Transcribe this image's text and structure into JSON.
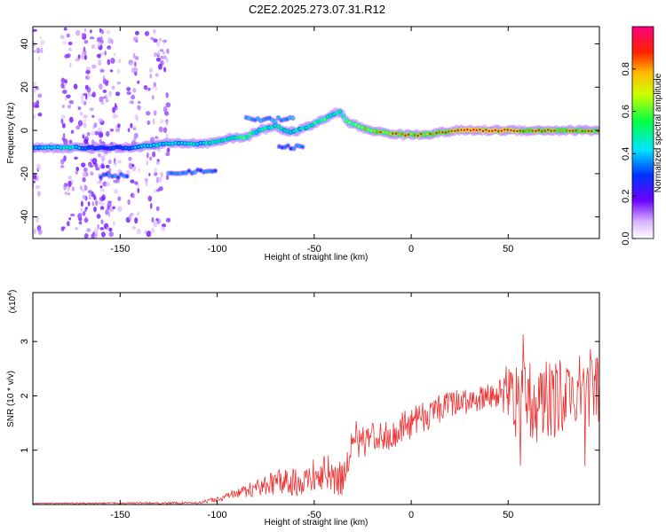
{
  "title": "C2E2.2025.273.07.31.R12",
  "chart_data": [
    {
      "type": "heatmap",
      "name": "spectrogram",
      "xlabel": "Height of straight line (km)",
      "ylabel": "Frequency (Hz)",
      "xlim": [
        -195,
        97
      ],
      "ylim": [
        -50,
        48
      ],
      "xticks": [
        -150,
        -100,
        -50,
        0,
        50
      ],
      "yticks": [
        -40,
        -20,
        0,
        20,
        40
      ],
      "colorbar": {
        "label": "Normalized spectral amplitude",
        "range": [
          0.0,
          1.0
        ],
        "ticks": [
          0.0,
          0.2,
          0.4,
          0.6,
          0.8
        ]
      },
      "ridge": [
        {
          "x": -195,
          "f": -8,
          "a": 0.3
        },
        {
          "x": -185,
          "f": -8,
          "a": 0.35
        },
        {
          "x": -175,
          "f": -8,
          "a": 0.4
        },
        {
          "x": -165,
          "f": -8,
          "a": 0.2
        },
        {
          "x": -155,
          "f": -8,
          "a": 0.2
        },
        {
          "x": -145,
          "f": -8,
          "a": 0.28
        },
        {
          "x": -135,
          "f": -7,
          "a": 0.34
        },
        {
          "x": -125,
          "f": -6,
          "a": 0.36
        },
        {
          "x": -115,
          "f": -6,
          "a": 0.38
        },
        {
          "x": -105,
          "f": -6,
          "a": 0.4
        },
        {
          "x": -95,
          "f": -4,
          "a": 0.45
        },
        {
          "x": -85,
          "f": -3,
          "a": 0.48
        },
        {
          "x": -78,
          "f": 0,
          "a": 0.42
        },
        {
          "x": -70,
          "f": 2,
          "a": 0.45
        },
        {
          "x": -63,
          "f": -1,
          "a": 0.4
        },
        {
          "x": -58,
          "f": 0,
          "a": 0.42
        },
        {
          "x": -50,
          "f": 3,
          "a": 0.45
        },
        {
          "x": -43,
          "f": 6,
          "a": 0.48
        },
        {
          "x": -37,
          "f": 9,
          "a": 0.4
        },
        {
          "x": -33,
          "f": 4,
          "a": 0.55
        },
        {
          "x": -25,
          "f": 1,
          "a": 0.65
        },
        {
          "x": -15,
          "f": -1,
          "a": 0.72
        },
        {
          "x": -5,
          "f": -2,
          "a": 0.78
        },
        {
          "x": 5,
          "f": -2,
          "a": 0.75
        },
        {
          "x": 15,
          "f": -1,
          "a": 0.72
        },
        {
          "x": 25,
          "f": 0,
          "a": 0.9
        },
        {
          "x": 35,
          "f": 0,
          "a": 0.95
        },
        {
          "x": 45,
          "f": 0,
          "a": 0.92
        },
        {
          "x": 55,
          "f": 0,
          "a": 0.85
        },
        {
          "x": 65,
          "f": 0,
          "a": 0.8
        },
        {
          "x": 75,
          "f": 0,
          "a": 0.82
        },
        {
          "x": 85,
          "f": 0,
          "a": 0.78
        },
        {
          "x": 95,
          "f": 0,
          "a": 0.75
        }
      ],
      "branches": [
        {
          "x": [
            -160,
            -146
          ],
          "f": -21,
          "a": 0.3
        },
        {
          "x": [
            -125,
            -100
          ],
          "f": -19,
          "a": 0.3
        },
        {
          "x": [
            -85,
            -60
          ],
          "f": 5,
          "a": 0.35
        },
        {
          "x": [
            -68,
            -55
          ],
          "f": -8,
          "a": 0.3
        }
      ]
    },
    {
      "type": "line",
      "name": "snr",
      "xlabel": "Height of straight line (km)",
      "ylabel": "SNR (10 * v/v)",
      "yscale_label": "(x10",
      "yscale_exp": "4",
      "xlim": [
        -195,
        97
      ],
      "ylim": [
        0,
        3.9
      ],
      "xticks": [
        -150,
        -100,
        -50,
        0,
        50
      ],
      "yticks": [
        1,
        2,
        3
      ],
      "color": "#ee3333",
      "trend": [
        {
          "x": -195,
          "y": 0.02,
          "n": 0.01
        },
        {
          "x": -110,
          "y": 0.03,
          "n": 0.02
        },
        {
          "x": -100,
          "y": 0.1,
          "n": 0.05
        },
        {
          "x": -85,
          "y": 0.25,
          "n": 0.12
        },
        {
          "x": -70,
          "y": 0.4,
          "n": 0.22
        },
        {
          "x": -55,
          "y": 0.45,
          "n": 0.3
        },
        {
          "x": -45,
          "y": 0.6,
          "n": 0.35
        },
        {
          "x": -36,
          "y": 0.45,
          "n": 0.35
        },
        {
          "x": -30,
          "y": 1.2,
          "n": 0.35
        },
        {
          "x": -20,
          "y": 1.2,
          "n": 0.3
        },
        {
          "x": -10,
          "y": 1.3,
          "n": 0.3
        },
        {
          "x": 0,
          "y": 1.5,
          "n": 0.3
        },
        {
          "x": 10,
          "y": 1.7,
          "n": 0.3
        },
        {
          "x": 25,
          "y": 1.9,
          "n": 0.25
        },
        {
          "x": 45,
          "y": 2.0,
          "n": 0.25
        },
        {
          "x": 50,
          "y": 2.1,
          "n": 0.55
        },
        {
          "x": 60,
          "y": 1.9,
          "n": 0.8
        },
        {
          "x": 70,
          "y": 1.9,
          "n": 0.75
        },
        {
          "x": 80,
          "y": 2.0,
          "n": 0.7
        },
        {
          "x": 97,
          "y": 2.1,
          "n": 0.7
        }
      ]
    }
  ]
}
